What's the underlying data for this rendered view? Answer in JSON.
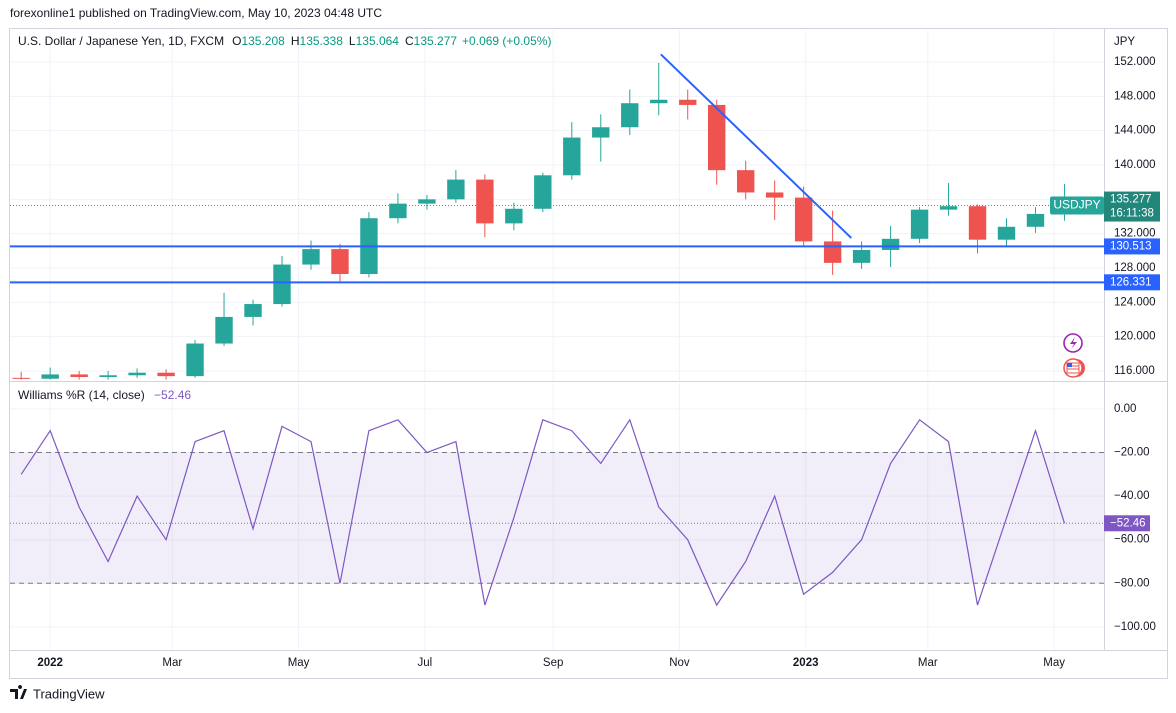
{
  "header": {
    "publisher": "forexonline1 published on TradingView.com, May 10, 2023 04:48 UTC",
    "footer": "TradingView"
  },
  "chart_data": [
    {
      "type": "candlestick",
      "title": "U.S. Dollar / Japanese Yen, 1D, FXCM",
      "ohlc": [
        {
          "key": "O",
          "text": "135.208"
        },
        {
          "key": "H",
          "text": "135.338"
        },
        {
          "key": "L",
          "text": "135.064"
        },
        {
          "key": "C",
          "text": "135.277"
        }
      ],
      "change": "+0.069 (+0.05%)",
      "unit": "JPY",
      "symbol": "USDJPY",
      "countdown": "16:11:38",
      "last": 135.277,
      "levels": [
        130.513,
        126.331
      ],
      "level_color": "#2962ff",
      "up_color": "#26a69a",
      "down_color": "#ef5350",
      "trendline": {
        "x": [
          295,
          387
        ],
        "y": [
          152.9,
          131.5
        ],
        "color": "#2962ff"
      },
      "x": [
        -14,
        0,
        14,
        28,
        42,
        56,
        70,
        84,
        98,
        112,
        126,
        140,
        154,
        168,
        182,
        196,
        210,
        224,
        238,
        252,
        266,
        280,
        294,
        308,
        322,
        336,
        350,
        364,
        378,
        392,
        406,
        420,
        434,
        448,
        462,
        476,
        490
      ],
      "open": [
        115.2,
        115.1,
        115.6,
        115.3,
        115.5,
        115.8,
        115.4,
        119.2,
        122.3,
        123.8,
        128.4,
        130.2,
        127.3,
        133.8,
        135.5,
        136.0,
        138.3,
        133.2,
        134.9,
        138.8,
        143.2,
        144.4,
        147.2,
        147.6,
        147.0,
        139.4,
        136.8,
        136.2,
        131.1,
        128.6,
        130.1,
        131.4,
        134.8,
        135.2,
        131.3,
        132.8,
        134.3
      ],
      "high": [
        115.9,
        116.4,
        116.0,
        116.0,
        116.3,
        116.2,
        119.6,
        125.1,
        124.3,
        129.4,
        131.2,
        130.8,
        134.5,
        136.7,
        136.5,
        139.4,
        138.9,
        135.6,
        139.1,
        145.0,
        145.9,
        148.8,
        151.9,
        148.8,
        147.6,
        140.5,
        138.2,
        137.5,
        134.7,
        131.1,
        132.9,
        135.1,
        137.9,
        135.4,
        133.8,
        135.1,
        137.8
      ],
      "low": [
        115.0,
        115.0,
        115.0,
        115.0,
        115.2,
        115.0,
        115.2,
        118.9,
        121.3,
        123.5,
        127.8,
        126.4,
        126.9,
        133.2,
        134.8,
        135.6,
        131.6,
        132.4,
        134.5,
        138.3,
        140.4,
        143.5,
        145.8,
        145.3,
        137.7,
        136.0,
        133.6,
        130.6,
        127.2,
        127.9,
        128.1,
        130.9,
        134.1,
        129.7,
        130.6,
        132.1,
        133.5
      ],
      "close": [
        115.1,
        115.6,
        115.3,
        115.5,
        115.8,
        115.4,
        119.2,
        122.3,
        123.8,
        128.4,
        130.2,
        127.3,
        133.8,
        135.5,
        136.0,
        138.3,
        133.2,
        134.9,
        138.8,
        143.2,
        144.4,
        147.2,
        147.6,
        147.0,
        139.4,
        136.8,
        136.2,
        131.1,
        128.6,
        130.1,
        131.4,
        134.8,
        135.2,
        131.3,
        132.8,
        134.3,
        135.3
      ],
      "xlim": [
        -19.4,
        509.1
      ],
      "ylim": [
        114.95,
        155.73
      ],
      "yticks": [
        {
          "value": 116,
          "label": "116.000"
        },
        {
          "value": 120,
          "label": "120.000"
        },
        {
          "value": 124,
          "label": "124.000"
        },
        {
          "value": 128,
          "label": "128.000"
        },
        {
          "value": 132,
          "label": "132.000"
        },
        {
          "value": 136,
          "label": "136.000"
        },
        {
          "value": 140,
          "label": "140.000"
        },
        {
          "value": 144,
          "label": "144.000"
        },
        {
          "value": 148,
          "label": "148.000"
        },
        {
          "value": 152,
          "label": "152.000"
        }
      ],
      "grid": true
    },
    {
      "type": "line",
      "title": "Williams %R (14, close)",
      "last": {
        "value": -52.46,
        "label": "−52.46"
      },
      "band": [
        -20,
        -80
      ],
      "x": [
        -14,
        0,
        14,
        28,
        42,
        56,
        70,
        84,
        98,
        112,
        126,
        140,
        154,
        168,
        182,
        196,
        210,
        224,
        238,
        252,
        266,
        280,
        294,
        308,
        322,
        336,
        350,
        364,
        378,
        392,
        406,
        420,
        434,
        448,
        462,
        476,
        490
      ],
      "series": [
        {
          "name": "Williams %R",
          "color": "#7e57c2",
          "values": [
            -30,
            -10,
            -45,
            -70,
            -40,
            -60,
            -15,
            -10,
            -55,
            -8,
            -15,
            -80,
            -10,
            -5,
            -20,
            -15,
            -90,
            -50,
            -5,
            -10,
            -25,
            -5,
            -45,
            -60,
            -90,
            -70,
            -40,
            -85,
            -75,
            -60,
            -25,
            -5,
            -15,
            -90,
            -50,
            -10,
            -52.46
          ]
        }
      ],
      "xlim": [
        -19.4,
        509.1
      ],
      "ylim": [
        -110.6,
        11.9
      ],
      "yticks": [
        {
          "value": 0,
          "label": "0.00"
        },
        {
          "value": -20,
          "label": "−20.00"
        },
        {
          "value": -40,
          "label": "−40.00"
        },
        {
          "value": -60,
          "label": "−60.00"
        },
        {
          "value": -80,
          "label": "−80.00"
        },
        {
          "value": -100,
          "label": "−100.00"
        }
      ],
      "xticks": [
        {
          "value": 0,
          "label": "2022"
        },
        {
          "value": 59,
          "label": "Mar"
        },
        {
          "value": 120,
          "label": "May"
        },
        {
          "value": 181,
          "label": "Jul"
        },
        {
          "value": 243,
          "label": "Sep"
        },
        {
          "value": 304,
          "label": "Nov"
        },
        {
          "value": 365,
          "label": "2023"
        },
        {
          "value": 424,
          "label": "Mar"
        },
        {
          "value": 485,
          "label": "May"
        }
      ],
      "grid": true
    }
  ]
}
